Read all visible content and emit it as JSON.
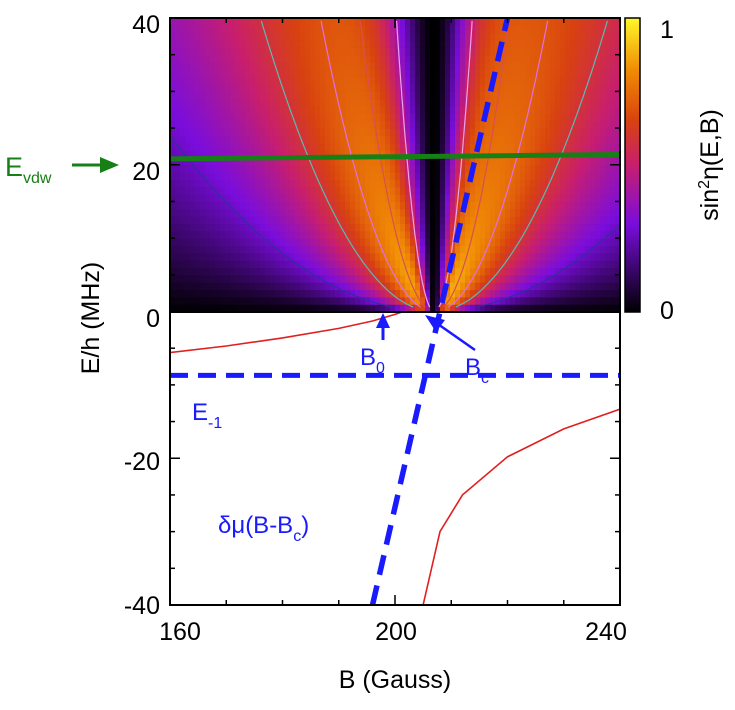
{
  "chart_data": {
    "type": "heatmap",
    "xlabel": "B (Gauss)",
    "ylabel": "E/h (MHz)",
    "xlim": [
      160,
      240
    ],
    "ylim": [
      -40,
      40
    ],
    "xticks": [
      160,
      200,
      240
    ],
    "xtick_labels": [
      "160",
      "200",
      "240"
    ],
    "yticks": [
      -40,
      -20,
      0,
      20,
      40
    ],
    "ytick_labels": [
      "-40",
      "-20",
      "0",
      "20",
      "40"
    ],
    "heatmap": {
      "quantity": "sin²η(E,B)",
      "colorbar_label_main": "sin",
      "colorbar_label_sup": "2",
      "colorbar_label_rest": "η(E,B)",
      "range": [
        0,
        1
      ],
      "colorbar_ticks": [
        "0",
        "1"
      ],
      "e_range": [
        0,
        40
      ],
      "b0": 201.5,
      "resonance_center": 207,
      "contour_levels": [
        0.1,
        0.3,
        0.5,
        0.7,
        0.9
      ],
      "colormap": [
        "#000000",
        "#7a0ddc",
        "#c81e6e",
        "#d8420f",
        "#f08a05",
        "#fff829"
      ]
    },
    "bound_state_curves": {
      "color": "#e02020",
      "left_branch": [
        [
          160,
          -5.6
        ],
        [
          170,
          -4.7
        ],
        [
          180,
          -3.6
        ],
        [
          190,
          -2.3
        ],
        [
          196,
          -1.3
        ],
        [
          200,
          -0.4
        ],
        [
          201.5,
          0
        ]
      ],
      "right_branch": [
        [
          205,
          -40
        ],
        [
          208,
          -30
        ],
        [
          212,
          -25
        ],
        [
          220,
          -19.8
        ],
        [
          230,
          -16
        ],
        [
          240,
          -13.3
        ]
      ]
    },
    "lines": [
      {
        "label_main": "δμ(B-B",
        "label_sub": "c",
        "label_end": ")",
        "color": "#1a1aff",
        "style": "dashed",
        "points": [
          [
            196,
            -40
          ],
          [
            220,
            40
          ]
        ]
      },
      {
        "label_main": "E",
        "label_sub": "-1",
        "color": "#1a1aff",
        "style": "dashed",
        "points": [
          [
            160,
            -8.7
          ],
          [
            240,
            -8.7
          ]
        ]
      },
      {
        "label_main": "E",
        "label_sub": "vdw",
        "color": "#168016",
        "style": "solid",
        "points": [
          [
            160,
            20.8
          ],
          [
            240,
            21.4
          ]
        ]
      }
    ],
    "annotations": [
      {
        "label_main": "B",
        "label_sub": "0",
        "x": 201.5,
        "y": 0
      },
      {
        "label_main": "B",
        "label_sub": "c",
        "x": 208,
        "y": 0
      }
    ]
  }
}
